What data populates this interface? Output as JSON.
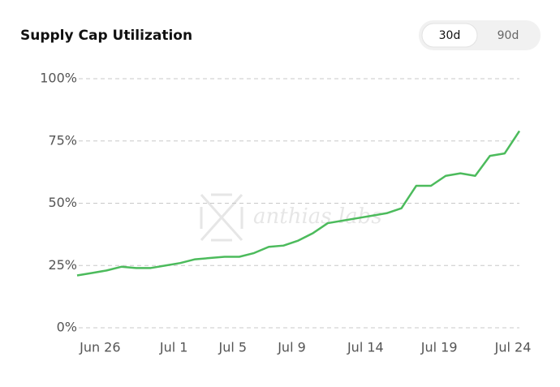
{
  "toggle": {
    "options": [
      "30d",
      "90d"
    ],
    "selected": 0
  },
  "chart_data": {
    "type": "line",
    "title": "Supply Cap Utilization",
    "watermark": "anthias labs",
    "categories": [
      null,
      null,
      "Jun 26",
      null,
      null,
      null,
      null,
      "Jul 1",
      null,
      null,
      null,
      "Jul 5",
      null,
      null,
      null,
      "Jul 9",
      null,
      null,
      null,
      null,
      "Jul 14",
      null,
      null,
      null,
      null,
      "Jul 19",
      null,
      null,
      null,
      null,
      "Jul 24"
    ],
    "series": [
      {
        "name": "Utilization",
        "color": "#4cbb5c",
        "values": [
          21,
          22,
          23,
          24.5,
          24,
          24,
          25,
          26,
          27.5,
          28,
          28.5,
          28.5,
          30,
          32.5,
          33,
          35,
          38,
          42,
          43,
          44,
          45,
          46,
          48,
          57,
          57,
          61,
          62,
          61,
          69,
          70,
          79
        ]
      }
    ],
    "ylim": [
      0,
      100
    ],
    "yticks": [
      {
        "value": 0,
        "label": "0%"
      },
      {
        "value": 25,
        "label": "25%"
      },
      {
        "value": 50,
        "label": "50%"
      },
      {
        "value": 75,
        "label": "75%"
      },
      {
        "value": 100,
        "label": "100%"
      }
    ],
    "grid": true
  }
}
